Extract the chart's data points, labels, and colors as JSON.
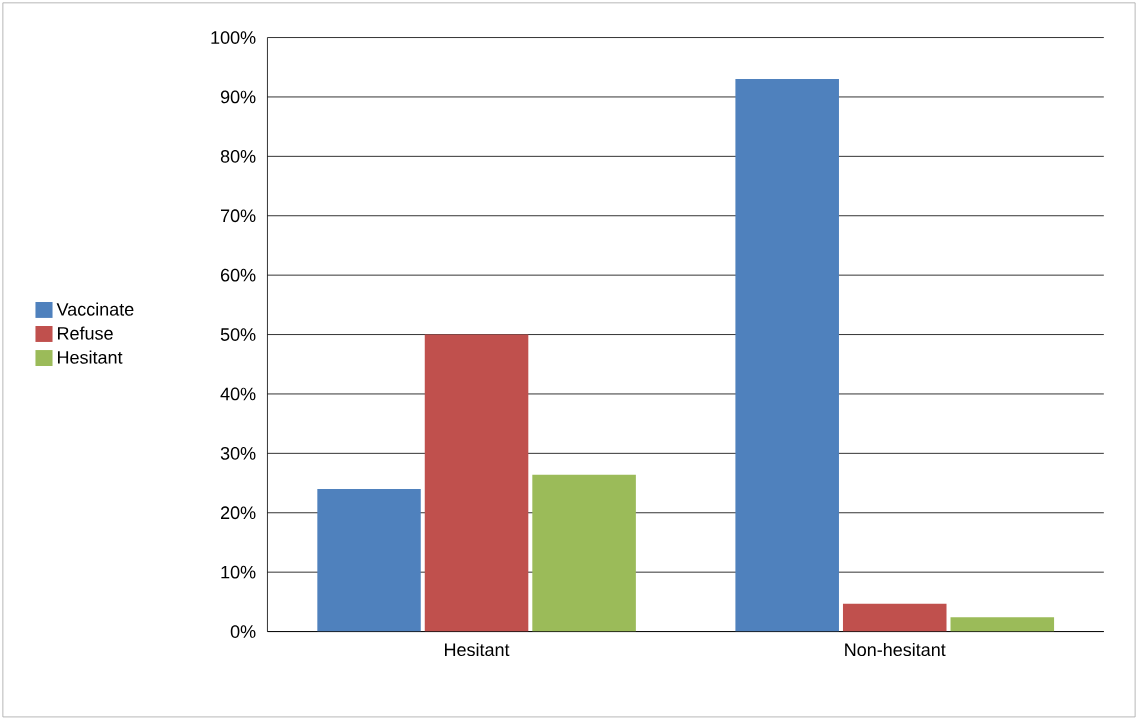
{
  "chart_data": {
    "type": "bar",
    "categories": [
      "Hesitant",
      "Non-hesitant"
    ],
    "series": [
      {
        "name": "Vaccinate",
        "color": "#4f81bd",
        "values": [
          24,
          93
        ]
      },
      {
        "name": "Refuse",
        "color": "#c0504d",
        "values": [
          50,
          4.7
        ]
      },
      {
        "name": "Hesitant",
        "color": "#9bbb59",
        "values": [
          26.4,
          2.4
        ]
      }
    ],
    "ylim": [
      0,
      100
    ],
    "yticks": [
      {
        "value": 0,
        "label": "0%"
      },
      {
        "value": 10,
        "label": "10%"
      },
      {
        "value": 20,
        "label": "20%"
      },
      {
        "value": 30,
        "label": "30%"
      },
      {
        "value": 40,
        "label": "40%"
      },
      {
        "value": 50,
        "label": "50%"
      },
      {
        "value": 60,
        "label": "60%"
      },
      {
        "value": 70,
        "label": "70%"
      },
      {
        "value": 80,
        "label": "80%"
      },
      {
        "value": 90,
        "label": "90%"
      },
      {
        "value": 100,
        "label": "100%"
      }
    ],
    "grid": "y",
    "legend": "left"
  }
}
